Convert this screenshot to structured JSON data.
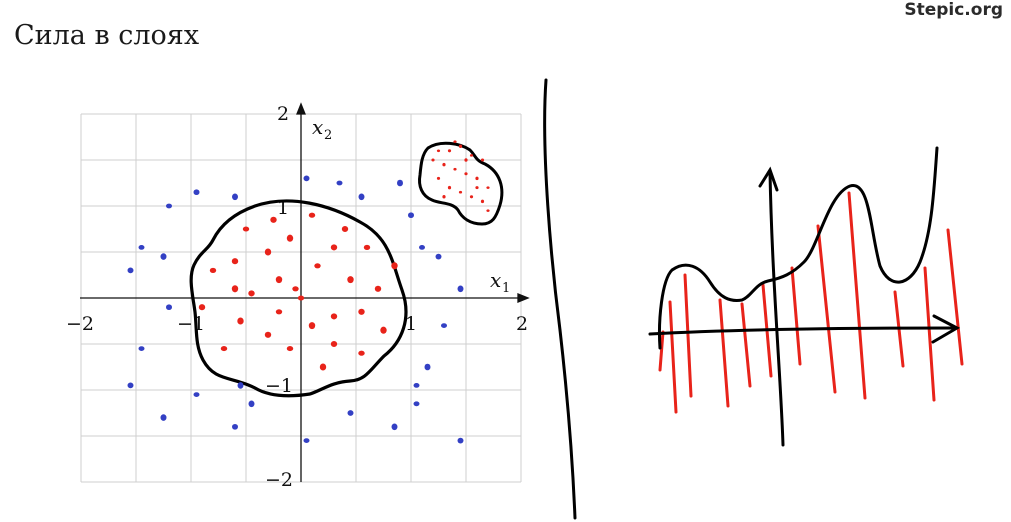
{
  "slide": {
    "title": "Сила в слоях",
    "brand": "Stepic.org"
  },
  "chart_data": {
    "type": "scatter",
    "xlim": [
      -2,
      2
    ],
    "ylim": [
      -2,
      2
    ],
    "grid": true,
    "x_ticks": [
      "−2",
      "−1",
      "1",
      "2"
    ],
    "y_ticks": [
      "2",
      "1",
      "−1",
      "−2"
    ],
    "xlabel": "x",
    "xlabel_sub": "1",
    "ylabel": "x",
    "ylabel_sub": "2",
    "colors": {
      "inner": "#e8231a",
      "outer": "#3340c4",
      "boundary": "#000000"
    },
    "inner_points": [
      [
        -0.8,
        0.3
      ],
      [
        -0.6,
        0.4
      ],
      [
        -0.3,
        0.5
      ],
      [
        -0.5,
        0.75
      ],
      [
        -0.25,
        0.85
      ],
      [
        -0.1,
        0.65
      ],
      [
        0.0,
        0.0
      ],
      [
        -0.45,
        0.05
      ],
      [
        -0.2,
        0.2
      ],
      [
        0.15,
        0.35
      ],
      [
        0.3,
        0.55
      ],
      [
        0.45,
        0.2
      ],
      [
        0.6,
        0.55
      ],
      [
        0.7,
        0.1
      ],
      [
        0.75,
        -0.35
      ],
      [
        0.55,
        -0.6
      ],
      [
        0.3,
        -0.5
      ],
      [
        0.1,
        -0.3
      ],
      [
        -0.1,
        -0.55
      ],
      [
        -0.3,
        -0.4
      ],
      [
        -0.55,
        -0.25
      ],
      [
        -0.7,
        -0.55
      ],
      [
        -0.9,
        -0.1
      ],
      [
        0.85,
        0.35
      ],
      [
        -0.2,
        -0.15
      ],
      [
        0.3,
        -0.2
      ],
      [
        -0.6,
        0.1
      ],
      [
        0.1,
        0.9
      ],
      [
        0.55,
        -0.15
      ],
      [
        0.2,
        -0.75
      ],
      [
        -0.05,
        0.1
      ],
      [
        0.4,
        0.75
      ]
    ],
    "outer_points": [
      [
        -1.2,
        1.0
      ],
      [
        -0.95,
        1.15
      ],
      [
        -0.6,
        1.1
      ],
      [
        -1.45,
        0.55
      ],
      [
        -1.55,
        0.3
      ],
      [
        -1.25,
        0.45
      ],
      [
        -1.45,
        -0.55
      ],
      [
        -1.55,
        -0.95
      ],
      [
        -1.25,
        -1.3
      ],
      [
        -0.95,
        -1.05
      ],
      [
        -0.6,
        -1.4
      ],
      [
        -0.45,
        -1.15
      ],
      [
        0.05,
        -1.55
      ],
      [
        0.45,
        -1.25
      ],
      [
        0.85,
        -1.4
      ],
      [
        1.05,
        -1.15
      ],
      [
        1.45,
        -1.55
      ],
      [
        1.15,
        -0.75
      ],
      [
        1.3,
        -0.3
      ],
      [
        1.25,
        0.45
      ],
      [
        1.45,
        0.1
      ],
      [
        1.1,
        0.55
      ],
      [
        1.0,
        0.9
      ],
      [
        0.55,
        1.1
      ],
      [
        0.35,
        1.25
      ],
      [
        0.05,
        1.3
      ],
      [
        -0.55,
        -0.95
      ],
      [
        1.05,
        -0.95
      ],
      [
        -1.2,
        -0.1
      ],
      [
        0.9,
        1.25
      ]
    ],
    "cluster_points": [
      [
        1.25,
        1.6
      ],
      [
        1.35,
        1.6
      ],
      [
        1.45,
        1.65
      ],
      [
        1.55,
        1.55
      ],
      [
        1.65,
        1.5
      ],
      [
        1.3,
        1.45
      ],
      [
        1.4,
        1.4
      ],
      [
        1.5,
        1.35
      ],
      [
        1.6,
        1.3
      ],
      [
        1.7,
        1.2
      ],
      [
        1.25,
        1.3
      ],
      [
        1.35,
        1.2
      ],
      [
        1.45,
        1.15
      ],
      [
        1.55,
        1.1
      ],
      [
        1.65,
        1.05
      ],
      [
        1.4,
        1.7
      ],
      [
        1.2,
        1.5
      ],
      [
        1.5,
        1.5
      ],
      [
        1.7,
        0.95
      ],
      [
        1.6,
        1.2
      ],
      [
        1.3,
        1.1
      ]
    ]
  }
}
